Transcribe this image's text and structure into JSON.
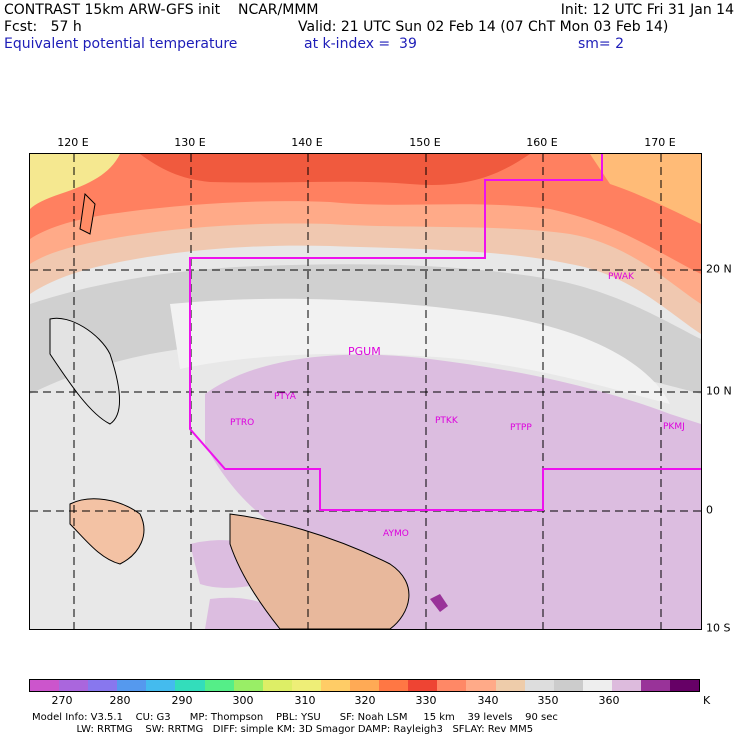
{
  "header": {
    "left_line1": "CONTRAST 15km ARW-GFS init    NCAR/MMM",
    "left_line2": "Fcst:   57 h",
    "left_line3": "Equivalent potential temperature",
    "right_line1": "Init: 12 UTC Fri 31 Jan 14",
    "right_line2": "Valid: 21 UTC Sun 02 Feb 14 (07 ChT Mon 03 Feb 14)",
    "param_line": "at k-index =  39",
    "sm_line": "sm= 2"
  },
  "longitudes": [
    "120 E",
    "130 E",
    "140 E",
    "150 E",
    "160 E",
    "170 E"
  ],
  "latitudes": [
    "20 N",
    "10 N",
    "0",
    "10 S"
  ],
  "stations": [
    "PWAK",
    "PGUM",
    "PTYA",
    "PTRO",
    "PTKK",
    "PTPP",
    "PKMJ",
    "AYMO"
  ],
  "colorbar": {
    "colors": [
      "#cc55cc",
      "#aa66dd",
      "#8877ee",
      "#5599ee",
      "#44bbee",
      "#33ddbb",
      "#55ee88",
      "#99ee66",
      "#ddee66",
      "#eeee77",
      "#ffcc66",
      "#ffaa55",
      "#ff7744",
      "#ee4433",
      "#ff8866",
      "#ffaa88",
      "#eeccaa",
      "#dddddd",
      "#cccccc",
      "#eeeeee",
      "#ddbbdd",
      "#993399",
      "#660066"
    ],
    "ticks": [
      "270",
      "280",
      "290",
      "300",
      "310",
      "320",
      "330",
      "340",
      "350",
      "360"
    ],
    "unit": "K"
  },
  "footer": {
    "line1": "Model Info: V3.5.1    CU: G3      MP: Thompson    PBL: YSU      SF: Noah LSM     15 km    39 levels    90 sec",
    "line2": "              LW: RRTMG    SW: RRTMG   DIFF: simple KM: 3D Smagor DAMP: Rayleigh3   SFLAY: Rev MM5"
  }
}
